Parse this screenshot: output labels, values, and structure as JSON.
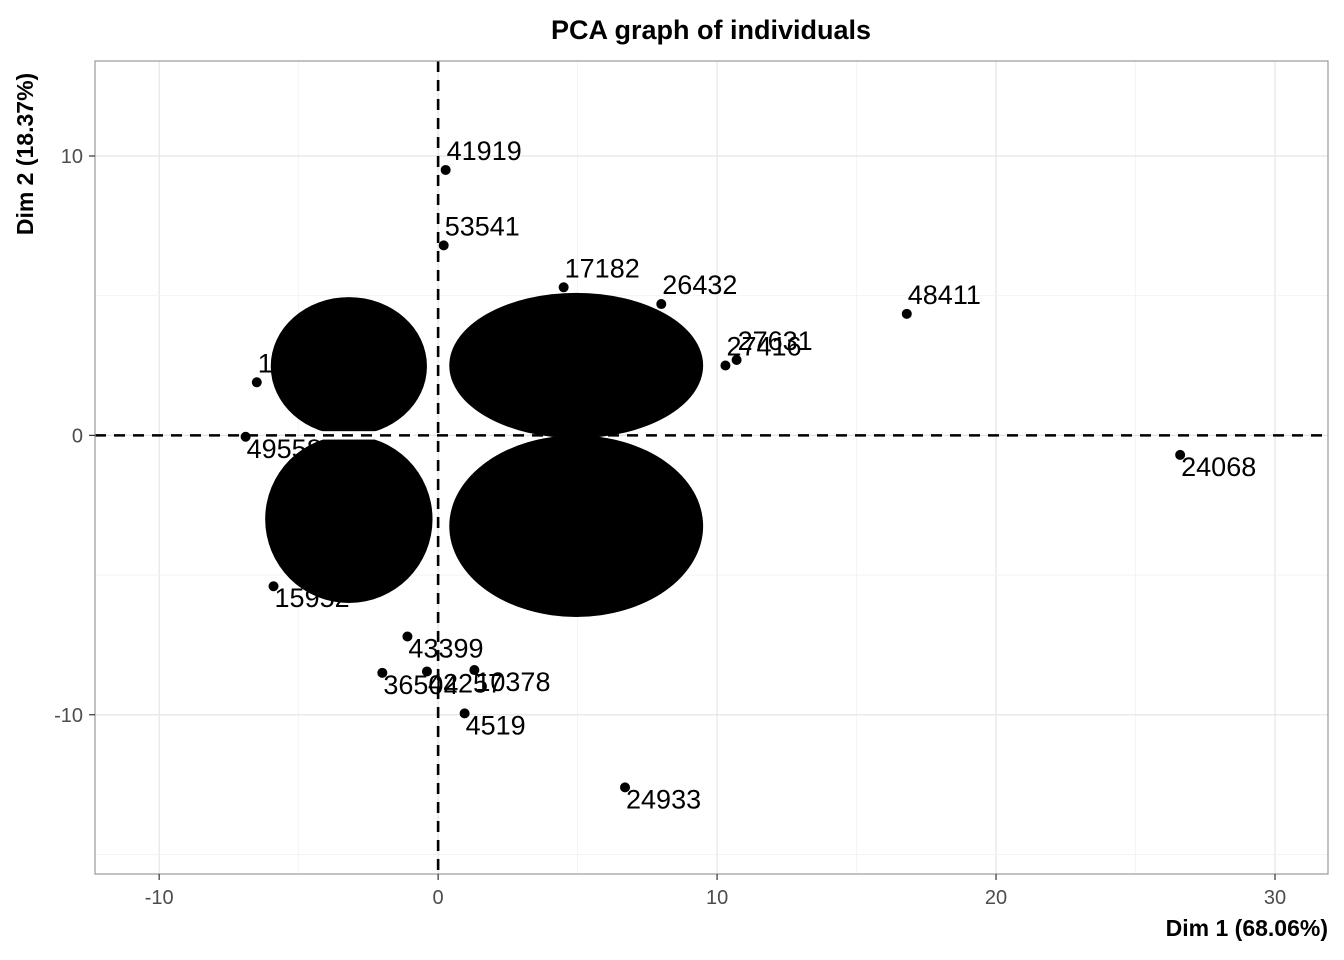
{
  "chart_data": {
    "type": "scatter",
    "title": "PCA graph of individuals",
    "xlabel": "Dim 1 (68.06%)",
    "ylabel": "Dim 2 (18.37%)",
    "xlim": [
      -12.3,
      31.9
    ],
    "ylim": [
      -15.7,
      13.4
    ],
    "x_ticks": [
      -10,
      0,
      10,
      20,
      30
    ],
    "y_ticks": [
      -10,
      0,
      10
    ],
    "x_tick_labels": [
      "-10",
      "0",
      "10",
      "20",
      "30"
    ],
    "y_tick_labels": [
      "-10",
      "0",
      "10"
    ],
    "grid": true,
    "reference_lines": {
      "x": 0,
      "y": 0,
      "style": "dashed"
    },
    "cluster_left": {
      "x_range": [
        -6,
        -0.4
      ],
      "y_range": [
        -6,
        4.5
      ]
    },
    "cluster_right": {
      "x_range": [
        0.4,
        9.5
      ],
      "y_range": [
        -6.5,
        5
      ]
    },
    "points": [
      {
        "label": "41919",
        "x": 0.27,
        "y": 9.5
      },
      {
        "label": "53541",
        "x": 0.2,
        "y": 6.8
      },
      {
        "label": "48411",
        "x": 16.8,
        "y": 4.35
      },
      {
        "label": "24068",
        "x": 26.6,
        "y": -0.7
      },
      {
        "label": "24933",
        "x": 6.7,
        "y": -12.6
      },
      {
        "label": "4519",
        "x": 0.95,
        "y": -9.95
      },
      {
        "label": "10378",
        "x": 1.3,
        "y": -8.4
      },
      {
        "label": "36504",
        "x": -2.0,
        "y": -8.5
      },
      {
        "label": "42257",
        "x": -0.4,
        "y": -8.45
      },
      {
        "label": "15952",
        "x": -5.9,
        "y": -5.4
      },
      {
        "label": "11964",
        "x": -6.5,
        "y": 1.9
      },
      {
        "label": "49558",
        "x": -6.9,
        "y": -0.05
      },
      {
        "label": "27416",
        "x": 10.3,
        "y": 2.5
      },
      {
        "label": "27631",
        "x": 10.7,
        "y": 2.7
      },
      {
        "label": "43399",
        "x": -1.1,
        "y": -7.2
      },
      {
        "label": "26432",
        "x": 8.0,
        "y": 4.7
      },
      {
        "label": "17182",
        "x": 4.5,
        "y": 5.3
      }
    ]
  }
}
